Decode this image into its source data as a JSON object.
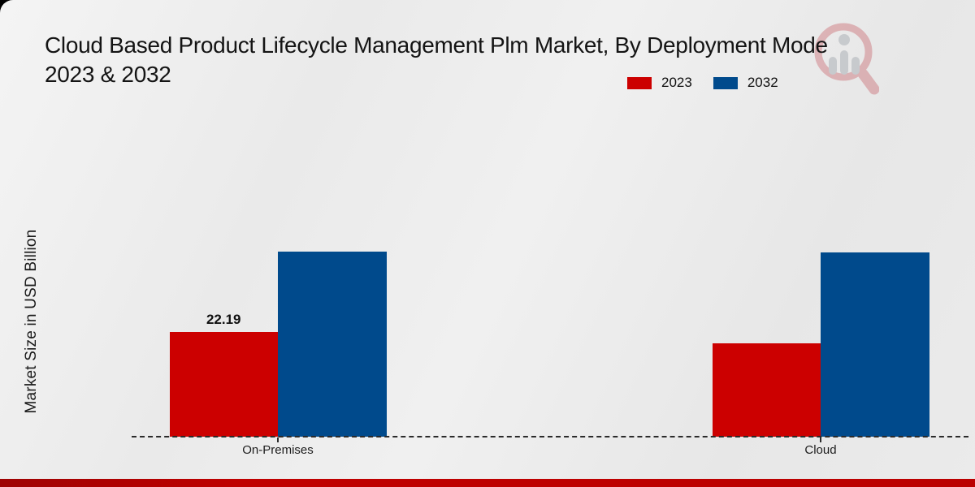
{
  "title": {
    "line1": "Cloud Based Product Lifecycle Management Plm Market, By Deployment Mode",
    "line2": "2023 & 2032"
  },
  "y_axis": {
    "label": "Market Size in USD Billion"
  },
  "watermark": {
    "icon": "magnifier-bar-chart-logo",
    "ring_color": "#c9666d",
    "bars_color": "#9aa0a8"
  },
  "footer": {
    "stripe_color": "#bb0000"
  },
  "chart_data": {
    "type": "bar",
    "title": "Cloud Based Product Lifecycle Management Plm Market, By Deployment Mode 2023 & 2032",
    "categories": [
      "On-Premises",
      "Cloud"
    ],
    "series": [
      {
        "name": "2023",
        "color": "#cc0000",
        "values": [
          22.19,
          19.8
        ],
        "data_labels": [
          "22.19",
          ""
        ]
      },
      {
        "name": "2032",
        "color": "#004a8c",
        "values": [
          39.2,
          39.0
        ],
        "data_labels": [
          "",
          ""
        ]
      }
    ],
    "ylabel": "Market Size in USD Billion",
    "xlabel": "",
    "grid": false,
    "legend_position": "top-center",
    "x_baseline_style": "dashed",
    "y_axis_ticks_visible": false
  }
}
